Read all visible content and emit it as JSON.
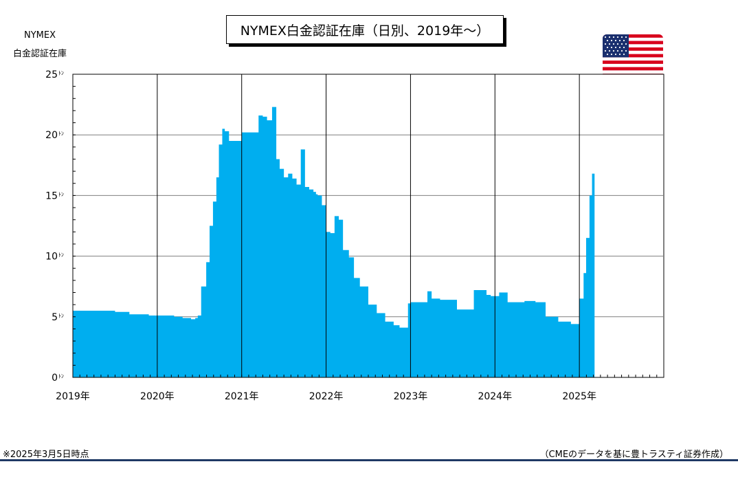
{
  "chart_data": {
    "type": "area",
    "title": "NYMEX白金認証在庫（日別、2019年～）",
    "ylabel_lines": [
      "NYMEX",
      "白金認証在庫"
    ],
    "ytick_unit": "ﾄﾝ",
    "yticks": [
      0,
      5,
      10,
      15,
      20,
      25
    ],
    "ylim": [
      0,
      25
    ],
    "xlim": [
      2019.0,
      2026.0
    ],
    "xticks": [
      {
        "x": 2019,
        "label": "2019年"
      },
      {
        "x": 2020,
        "label": "2020年"
      },
      {
        "x": 2021,
        "label": "2021年"
      },
      {
        "x": 2022,
        "label": "2022年"
      },
      {
        "x": 2023,
        "label": "2023年"
      },
      {
        "x": 2024,
        "label": "2024年"
      },
      {
        "x": 2025,
        "label": "2025年"
      }
    ],
    "grid": true,
    "color": "#00aeef",
    "series": [
      {
        "x": [
          2019.0,
          2019.25,
          2019.5,
          2019.67,
          2019.75,
          2019.9,
          2020.0,
          2020.2,
          2020.3,
          2020.4,
          2020.45,
          2020.48,
          2020.52,
          2020.58,
          2020.62,
          2020.66,
          2020.7,
          2020.73,
          2020.77,
          2020.8,
          2020.85,
          2020.9,
          2021.0,
          2021.1,
          2021.2,
          2021.25,
          2021.3,
          2021.36,
          2021.41,
          2021.45,
          2021.5,
          2021.55,
          2021.6,
          2021.65,
          2021.7,
          2021.75,
          2021.8,
          2021.85,
          2021.88,
          2021.9,
          2021.95,
          2022.0,
          2022.05,
          2022.1,
          2022.15,
          2022.2,
          2022.27,
          2022.33,
          2022.4,
          2022.5,
          2022.6,
          2022.7,
          2022.8,
          2022.87,
          2022.92,
          2022.97,
          2023.0,
          2023.2,
          2023.25,
          2023.35,
          2023.55,
          2023.75,
          2023.9,
          2023.95,
          2024.05,
          2024.15,
          2024.35,
          2024.48,
          2024.6,
          2024.75,
          2024.9,
          2024.95,
          2025.0,
          2025.05,
          2025.08,
          2025.12,
          2025.15,
          2025.18
        ],
        "y": [
          5.5,
          5.5,
          5.4,
          5.2,
          5.2,
          5.1,
          5.1,
          5.0,
          4.9,
          4.8,
          4.9,
          5.1,
          7.5,
          9.5,
          12.5,
          14.5,
          16.5,
          19.2,
          20.5,
          20.3,
          19.5,
          19.5,
          20.2,
          20.2,
          21.6,
          21.5,
          21.2,
          22.3,
          18.0,
          17.2,
          16.5,
          16.8,
          16.4,
          15.9,
          18.8,
          15.7,
          15.5,
          15.3,
          15.1,
          15.0,
          14.2,
          12.0,
          11.9,
          13.3,
          13.0,
          10.5,
          9.9,
          8.2,
          7.5,
          6.0,
          5.3,
          4.6,
          4.3,
          4.1,
          4.1,
          6.1,
          6.2,
          7.1,
          6.5,
          6.4,
          5.6,
          7.2,
          6.8,
          6.7,
          7.0,
          6.2,
          6.3,
          6.2,
          5.0,
          4.6,
          4.4,
          4.4,
          6.5,
          8.6,
          11.5,
          15.0,
          16.8,
          17.2
        ]
      }
    ],
    "note": "※2025年3月5日時点",
    "source": "（CMEのデータを基に豊トラスティ証券作成）"
  }
}
